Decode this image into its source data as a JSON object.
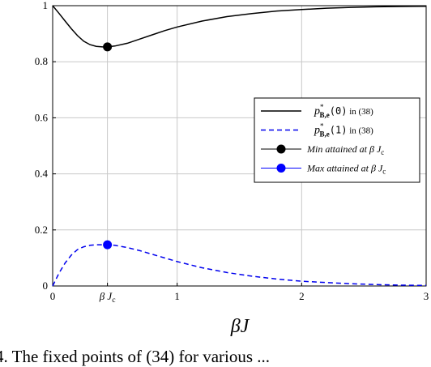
{
  "chart_data": {
    "type": "line",
    "title": "",
    "xlabel": "βJ",
    "ylabel": "",
    "xlim": [
      0,
      3
    ],
    "ylim": [
      0,
      1
    ],
    "grid": true,
    "legend_position": "center-right",
    "x_ticks": [
      {
        "value": 0,
        "label": "0"
      },
      {
        "value": 0.44,
        "label": "βJc"
      },
      {
        "value": 1,
        "label": "1"
      },
      {
        "value": 2,
        "label": "2"
      },
      {
        "value": 3,
        "label": "3"
      }
    ],
    "y_ticks": [
      {
        "value": 0,
        "label": "0"
      },
      {
        "value": 0.2,
        "label": "0.2"
      },
      {
        "value": 0.4,
        "label": "0.4"
      },
      {
        "value": 0.6,
        "label": "0.6"
      },
      {
        "value": 0.8,
        "label": "0.8"
      },
      {
        "value": 1,
        "label": "1"
      }
    ],
    "series": [
      {
        "name": "p*B,e(0) in (38)",
        "style": "solid",
        "color": "#000000",
        "x": [
          0,
          0.05,
          0.1,
          0.15,
          0.2,
          0.25,
          0.3,
          0.35,
          0.4,
          0.44,
          0.5,
          0.6,
          0.7,
          0.8,
          0.9,
          1.0,
          1.2,
          1.4,
          1.6,
          1.8,
          2.0,
          2.2,
          2.4,
          2.6,
          2.8,
          3.0
        ],
        "y": [
          1.0,
          0.973,
          0.945,
          0.918,
          0.893,
          0.873,
          0.861,
          0.855,
          0.853,
          0.853,
          0.856,
          0.866,
          0.881,
          0.896,
          0.911,
          0.924,
          0.945,
          0.961,
          0.972,
          0.981,
          0.986,
          0.991,
          0.994,
          0.996,
          0.997,
          0.998
        ]
      },
      {
        "name": "p*B,e(1) in (38)",
        "style": "dashed",
        "color": "#0000ee",
        "x": [
          0,
          0.05,
          0.1,
          0.15,
          0.2,
          0.25,
          0.3,
          0.35,
          0.4,
          0.44,
          0.5,
          0.6,
          0.7,
          0.8,
          0.9,
          1.0,
          1.2,
          1.4,
          1.6,
          1.8,
          2.0,
          2.2,
          2.4,
          2.6,
          2.8,
          3.0
        ],
        "y": [
          0.0,
          0.045,
          0.082,
          0.11,
          0.13,
          0.14,
          0.145,
          0.147,
          0.147,
          0.147,
          0.145,
          0.137,
          0.126,
          0.113,
          0.1,
          0.087,
          0.065,
          0.048,
          0.035,
          0.025,
          0.017,
          0.012,
          0.008,
          0.005,
          0.003,
          0.002
        ]
      }
    ],
    "markers": [
      {
        "name": "Min attained at βJc",
        "x": 0.44,
        "y": 0.853,
        "color": "#000000"
      },
      {
        "name": "Max attained at βJc",
        "x": 0.44,
        "y": 0.147,
        "color": "#0000ff"
      }
    ]
  },
  "legend": {
    "entries": [
      {
        "prefix": "p",
        "sup": "*",
        "sub": "B,e",
        "arg": "(0)",
        "suffix": " in (38)",
        "color": "#000000",
        "kind": "line",
        "dash": ""
      },
      {
        "prefix": "p",
        "sup": "*",
        "sub": "B,e",
        "arg": "(1)",
        "suffix": " in (38)",
        "color": "#0000ee",
        "kind": "line",
        "dash": "6,4"
      },
      {
        "text": "Min attained at βJc",
        "color": "#000000",
        "kind": "marker"
      },
      {
        "text": "Max attained at βJc",
        "color": "#0000ff",
        "kind": "marker"
      }
    ]
  },
  "caption": {
    "text": "4.  The fixed points of (34) for various ..."
  }
}
